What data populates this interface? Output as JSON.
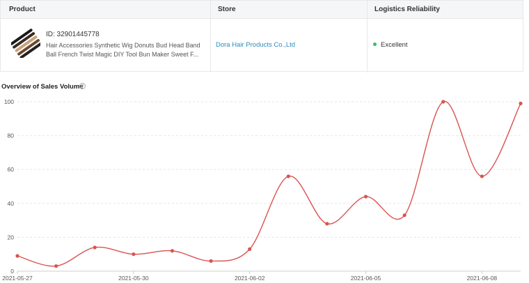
{
  "table": {
    "headers": {
      "product": "Product",
      "store": "Store",
      "logistics": "Logistics Reliability"
    },
    "row": {
      "product_id": "ID: 32901445778",
      "product_name": "Hair Accessories Synthetic Wig Donuts Bud Head Band Ball French Twist Magic DIY Tool Bun Maker Sweet F...",
      "store": "Dora Hair Products Co.,Ltd",
      "logistics_status": "Excellent",
      "logistics_color": "#35c25b"
    }
  },
  "chart_title": "Overview of Sales Volume",
  "help_icon": "question-circle-icon",
  "chart_data": {
    "type": "line",
    "title": "Overview of Sales Volume",
    "x": [
      "2021-05-27",
      "2021-05-28",
      "2021-05-29",
      "2021-05-30",
      "2021-05-31",
      "2021-06-01",
      "2021-06-02",
      "2021-06-03",
      "2021-06-04",
      "2021-06-05",
      "2021-06-06",
      "2021-06-07",
      "2021-06-08",
      "2021-06-09"
    ],
    "values": [
      9,
      3,
      14,
      10,
      12,
      6,
      13,
      56,
      28,
      44,
      33,
      100,
      56,
      99
    ],
    "x_tick_labels": [
      "2021-05-27",
      "2021-05-30",
      "2021-06-02",
      "2021-06-05",
      "2021-06-08"
    ],
    "y_ticks": [
      0,
      20,
      40,
      60,
      80,
      100
    ],
    "ylim": [
      0,
      100
    ],
    "grid": true,
    "color": "#d9534f"
  }
}
